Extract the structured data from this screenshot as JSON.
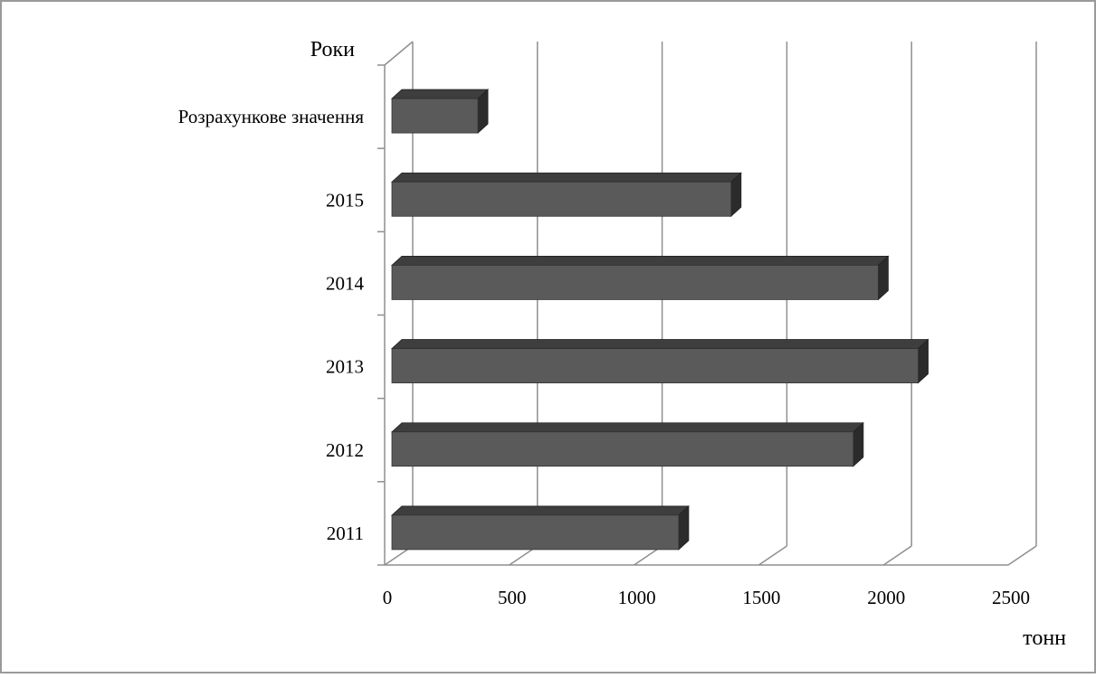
{
  "chart_data": {
    "type": "bar",
    "orientation": "horizontal",
    "style": "3d",
    "ylabel": "Роки",
    "xlabel": "тонн",
    "categories": [
      "Розрахункове значення",
      "2015",
      "2014",
      "2013",
      "2012",
      "2011"
    ],
    "values": [
      345,
      1360,
      1950,
      2110,
      1850,
      1150
    ],
    "xlim": [
      0,
      2500
    ],
    "xticks": [
      "0",
      "500",
      "1000",
      "1500",
      "2000",
      "2500"
    ],
    "grid": true,
    "legend": "none",
    "bar_color": "#5a5a5a",
    "bar_top_color": "#3e3e3e",
    "bar_side_color": "#2b2b2b"
  }
}
